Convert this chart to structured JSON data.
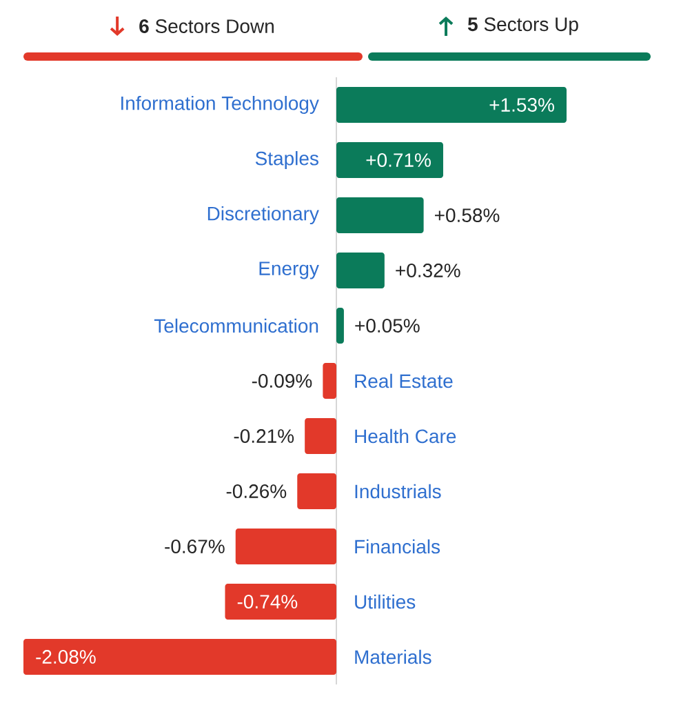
{
  "chart_data": {
    "type": "bar",
    "orientation": "horizontal",
    "categories": [
      "Information Technology",
      "Staples",
      "Discretionary",
      "Energy",
      "Telecommunication",
      "Real Estate",
      "Health Care",
      "Industrials",
      "Financials",
      "Utilities",
      "Materials"
    ],
    "values": [
      1.53,
      0.71,
      0.58,
      0.32,
      0.05,
      -0.09,
      -0.21,
      -0.26,
      -0.67,
      -0.74,
      -2.08
    ],
    "colors": [
      "#0b7b5a",
      "#0b7b5a",
      "#0b7b5a",
      "#0b7b5a",
      "#0b7b5a",
      "#e2392a",
      "#e2392a",
      "#e2392a",
      "#e2392a",
      "#e2392a",
      "#e2392a"
    ],
    "value_labels": [
      "+1.53%",
      "+0.71%",
      "+0.58%",
      "+0.32%",
      "+0.05%",
      "-0.09%",
      "-0.21%",
      "-0.26%",
      "-0.67%",
      "-0.74%",
      "-2.08%"
    ],
    "annotations": [
      "**6** Sectors Down",
      "**5** Sectors Up"
    ]
  }
}
